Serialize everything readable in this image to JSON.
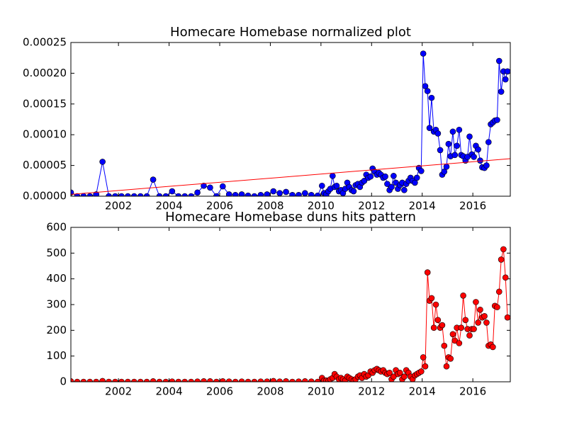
{
  "chart_data": [
    {
      "type": "line",
      "title": "Homecare Homebase normalized plot",
      "x": [
        2000.12,
        2000.37,
        2000.62,
        2000.87,
        2001.12,
        2001.37,
        2001.62,
        2001.87,
        2002.12,
        2002.37,
        2002.62,
        2002.87,
        2003.12,
        2003.37,
        2003.62,
        2003.87,
        2004.12,
        2004.37,
        2004.62,
        2004.87,
        2005.12,
        2005.37,
        2005.62,
        2005.87,
        2006.12,
        2006.37,
        2006.62,
        2006.87,
        2007.12,
        2007.37,
        2007.62,
        2007.87,
        2008.12,
        2008.37,
        2008.62,
        2008.87,
        2009.12,
        2009.37,
        2009.62,
        2009.87,
        2010.04,
        2010.12,
        2010.21,
        2010.29,
        2010.37,
        2010.46,
        2010.54,
        2010.62,
        2010.71,
        2010.79,
        2010.87,
        2010.96,
        2011.04,
        2011.12,
        2011.21,
        2011.29,
        2011.37,
        2011.46,
        2011.54,
        2011.62,
        2011.71,
        2011.79,
        2011.87,
        2011.96,
        2012.04,
        2012.12,
        2012.21,
        2012.29,
        2012.37,
        2012.46,
        2012.54,
        2012.62,
        2012.71,
        2012.79,
        2012.87,
        2012.96,
        2013.04,
        2013.12,
        2013.21,
        2013.29,
        2013.37,
        2013.46,
        2013.54,
        2013.62,
        2013.71,
        2013.79,
        2013.87,
        2013.96,
        2014.04,
        2014.12,
        2014.21,
        2014.29,
        2014.37,
        2014.46,
        2014.54,
        2014.62,
        2014.71,
        2014.79,
        2014.87,
        2014.96,
        2015.04,
        2015.12,
        2015.21,
        2015.29,
        2015.37,
        2015.46,
        2015.54,
        2015.62,
        2015.71,
        2015.79,
        2015.87,
        2015.96,
        2016.04,
        2016.12,
        2016.21,
        2016.29,
        2016.37,
        2016.46,
        2016.54,
        2016.62,
        2016.71,
        2016.79,
        2016.87,
        2016.96,
        2017.04,
        2017.12,
        2017.21,
        2017.29,
        2017.37
      ],
      "series": [
        {
          "color": "#0000ff",
          "values": [
            6e-06,
            0,
            0,
            0,
            3e-06,
            5.6e-05,
            0,
            0,
            0,
            0,
            0,
            0,
            0,
            2.7e-05,
            0,
            0,
            8e-06,
            0,
            0,
            0,
            6e-06,
            1.7e-05,
            1.4e-05,
            0,
            1.6e-05,
            3e-06,
            2e-06,
            3e-06,
            1e-06,
            0,
            2e-06,
            3e-06,
            8e-06,
            5e-06,
            7e-06,
            2e-06,
            2e-06,
            5e-06,
            2e-06,
            1e-06,
            1.7e-05,
            5e-06,
            3e-06,
            8e-06,
            1.2e-05,
            3.3e-05,
            1.5e-05,
            1.7e-05,
            8e-06,
            1e-05,
            5e-06,
            1.2e-05,
            2.2e-05,
            1.5e-05,
            1e-05,
            8e-06,
            1.8e-05,
            2e-05,
            1.5e-05,
            2.2e-05,
            2.5e-05,
            3.5e-05,
            3e-05,
            3.2e-05,
            4.5e-05,
            4e-05,
            3.5e-05,
            3.8e-05,
            3.5e-05,
            3e-05,
            3.2e-05,
            2e-05,
            1e-05,
            1.5e-05,
            3.3e-05,
            2.2e-05,
            1.2e-05,
            1.8e-05,
            2.2e-05,
            1e-05,
            2e-05,
            2.5e-05,
            3e-05,
            2.5e-05,
            2.2e-05,
            3e-05,
            4.6e-05,
            4.1e-05,
            0.000232,
            0.000179,
            0.000171,
            0.000111,
            0.00016,
            0.000105,
            0.000108,
            0.000102,
            7.5e-05,
            3.5e-05,
            4e-05,
            4.8e-05,
            8.5e-05,
            6.5e-05,
            0.000105,
            6.7e-05,
            8.2e-05,
            0.000108,
            6.7e-05,
            6.5e-05,
            5.8e-05,
            6.4e-05,
            9.7e-05,
            6.8e-05,
            6.4e-05,
            8.2e-05,
            7.6e-05,
            5.8e-05,
            4.7e-05,
            4.6e-05,
            5e-05,
            8.8e-05,
            0.000117,
            0.00012,
            0.000123,
            0.000124,
            0.00022,
            0.00017,
            0.000203,
            0.00019,
            0.000203
          ]
        }
      ],
      "trend": {
        "color": "#ff0000",
        "x": [
          2000.12,
          2017.48
        ],
        "values": [
          3e-06,
          6.1e-05
        ]
      },
      "xlim": [
        2000.12,
        2017.48
      ],
      "xticks": [
        2002,
        2004,
        2006,
        2008,
        2010,
        2012,
        2014,
        2016
      ],
      "ylim": [
        0,
        0.00025
      ],
      "yticks": [
        {
          "value": 0,
          "label": "0.00000"
        },
        {
          "value": 5e-05,
          "label": "0.00005"
        },
        {
          "value": 0.0001,
          "label": "0.00010"
        },
        {
          "value": 0.00015,
          "label": "0.00015"
        },
        {
          "value": 0.0002,
          "label": "0.00020"
        },
        {
          "value": 0.00025,
          "label": "0.00025"
        }
      ]
    },
    {
      "type": "line",
      "title": "Homecare Homebase duns hits pattern",
      "x": [
        2000.12,
        2000.37,
        2000.62,
        2000.87,
        2001.12,
        2001.37,
        2001.62,
        2001.87,
        2002.12,
        2002.37,
        2002.62,
        2002.87,
        2003.12,
        2003.37,
        2003.62,
        2003.87,
        2004.12,
        2004.37,
        2004.62,
        2004.87,
        2005.12,
        2005.37,
        2005.62,
        2005.87,
        2006.12,
        2006.37,
        2006.62,
        2006.87,
        2007.12,
        2007.37,
        2007.62,
        2007.87,
        2008.12,
        2008.37,
        2008.62,
        2008.87,
        2009.12,
        2009.37,
        2009.62,
        2009.87,
        2010.04,
        2010.12,
        2010.21,
        2010.29,
        2010.37,
        2010.46,
        2010.54,
        2010.62,
        2010.71,
        2010.79,
        2010.87,
        2010.96,
        2011.04,
        2011.12,
        2011.21,
        2011.29,
        2011.37,
        2011.46,
        2011.54,
        2011.62,
        2011.71,
        2011.79,
        2011.87,
        2011.96,
        2012.04,
        2012.12,
        2012.21,
        2012.29,
        2012.37,
        2012.46,
        2012.54,
        2012.62,
        2012.71,
        2012.79,
        2012.87,
        2012.96,
        2013.04,
        2013.12,
        2013.21,
        2013.29,
        2013.37,
        2013.46,
        2013.54,
        2013.62,
        2013.71,
        2013.79,
        2013.87,
        2013.96,
        2014.04,
        2014.12,
        2014.21,
        2014.29,
        2014.37,
        2014.46,
        2014.54,
        2014.62,
        2014.71,
        2014.79,
        2014.87,
        2014.96,
        2015.04,
        2015.12,
        2015.21,
        2015.29,
        2015.37,
        2015.46,
        2015.54,
        2015.62,
        2015.71,
        2015.79,
        2015.87,
        2015.96,
        2016.04,
        2016.12,
        2016.21,
        2016.29,
        2016.37,
        2016.46,
        2016.54,
        2016.62,
        2016.71,
        2016.79,
        2016.87,
        2016.96,
        2017.04,
        2017.12,
        2017.21,
        2017.29,
        2017.37
      ],
      "series": [
        {
          "color": "#ff0000",
          "values": [
            2,
            0,
            0,
            0,
            0,
            3,
            0,
            0,
            0,
            0,
            0,
            0,
            0,
            2,
            0,
            0,
            1,
            0,
            0,
            0,
            1,
            2,
            2,
            0,
            2,
            1,
            0,
            1,
            0,
            0,
            1,
            1,
            3,
            1,
            2,
            0,
            1,
            2,
            1,
            0,
            15,
            5,
            5,
            3,
            10,
            15,
            30,
            20,
            10,
            15,
            10,
            5,
            20,
            15,
            10,
            5,
            10,
            20,
            25,
            15,
            30,
            20,
            25,
            40,
            35,
            45,
            50,
            45,
            40,
            45,
            35,
            30,
            35,
            10,
            20,
            45,
            30,
            35,
            10,
            20,
            45,
            35,
            20,
            10,
            25,
            30,
            35,
            40,
            95,
            60,
            425,
            315,
            325,
            210,
            300,
            240,
            210,
            220,
            140,
            60,
            95,
            90,
            185,
            160,
            210,
            150,
            210,
            335,
            240,
            205,
            180,
            205,
            205,
            310,
            230,
            280,
            250,
            255,
            230,
            140,
            145,
            135,
            295,
            290,
            350,
            475,
            515,
            405,
            250
          ]
        }
      ],
      "xlim": [
        2000.12,
        2017.48
      ],
      "xticks": [
        2002,
        2004,
        2006,
        2008,
        2010,
        2012,
        2014,
        2016
      ],
      "ylim": [
        0,
        600
      ],
      "yticks": [
        0,
        100,
        200,
        300,
        400,
        500,
        600
      ]
    }
  ]
}
